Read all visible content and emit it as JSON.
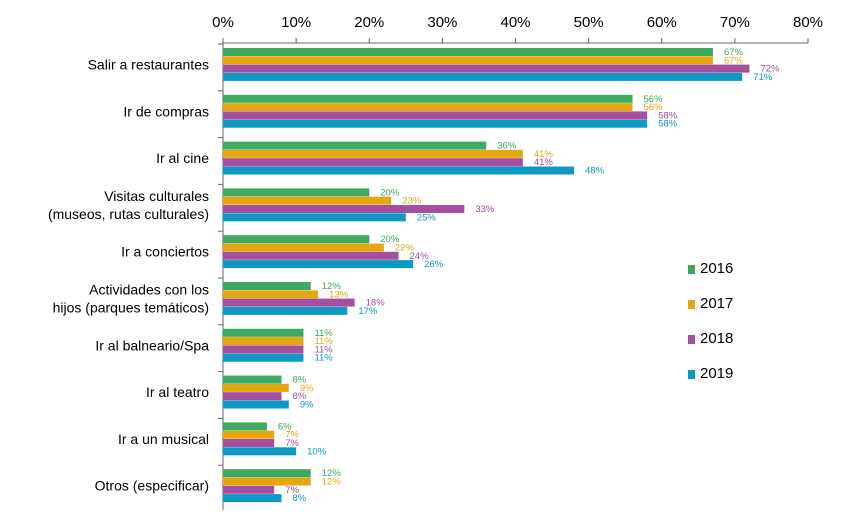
{
  "chart_data": {
    "type": "bar",
    "orientation": "horizontal",
    "categories": [
      "Salir a restaurantes",
      "Ir de compras",
      "Ir al cine",
      "Visitas culturales\n(museos, rutas culturales)",
      "Ir a conciertos",
      "Actividades con los\nhijos (parques temáticos)",
      "Ir al balneario/Spa",
      "Ir al teatro",
      "Ir a un musical",
      "Otros (especificar)"
    ],
    "series": [
      {
        "name": "2016",
        "color": "#3daa5f",
        "values": [
          67,
          56,
          36,
          20,
          20,
          12,
          11,
          8,
          6,
          12
        ]
      },
      {
        "name": "2017",
        "color": "#e5a70f",
        "values": [
          67,
          56,
          41,
          23,
          22,
          13,
          11,
          9,
          7,
          12
        ]
      },
      {
        "name": "2018",
        "color": "#a44f9f",
        "values": [
          72,
          58,
          41,
          33,
          24,
          18,
          11,
          8,
          7,
          7
        ]
      },
      {
        "name": "2019",
        "color": "#0e98c4",
        "values": [
          71,
          58,
          48,
          25,
          26,
          17,
          11,
          9,
          10,
          8
        ]
      }
    ],
    "value_labels": [
      [
        "67%",
        "56%",
        "36%",
        "20%",
        "20%",
        "12%",
        "11%",
        "8%",
        "6%",
        "12%"
      ],
      [
        "67%",
        "56%",
        "41%",
        "23%",
        "22%",
        "13%",
        "11%",
        "9%",
        "7%",
        "12%"
      ],
      [
        "72%",
        "58%",
        "41%",
        "33%",
        "24%",
        "18%",
        "11%",
        "8%",
        "7%",
        "7%"
      ],
      [
        "71%",
        "58%",
        "48%",
        "25%",
        "26%",
        "17%",
        "11%",
        "9%",
        "10%",
        "8%"
      ]
    ],
    "xaxis": {
      "ticks": [
        0,
        10,
        20,
        30,
        40,
        50,
        60,
        70,
        80
      ],
      "tick_labels": [
        "0%",
        "10%",
        "20%",
        "30%",
        "40%",
        "50%",
        "60%",
        "70%",
        "80%"
      ],
      "position": "top"
    },
    "xlim": [
      0,
      80
    ],
    "title": "",
    "xlabel": "",
    "ylabel": "",
    "grid": false,
    "legend_position": "right"
  }
}
